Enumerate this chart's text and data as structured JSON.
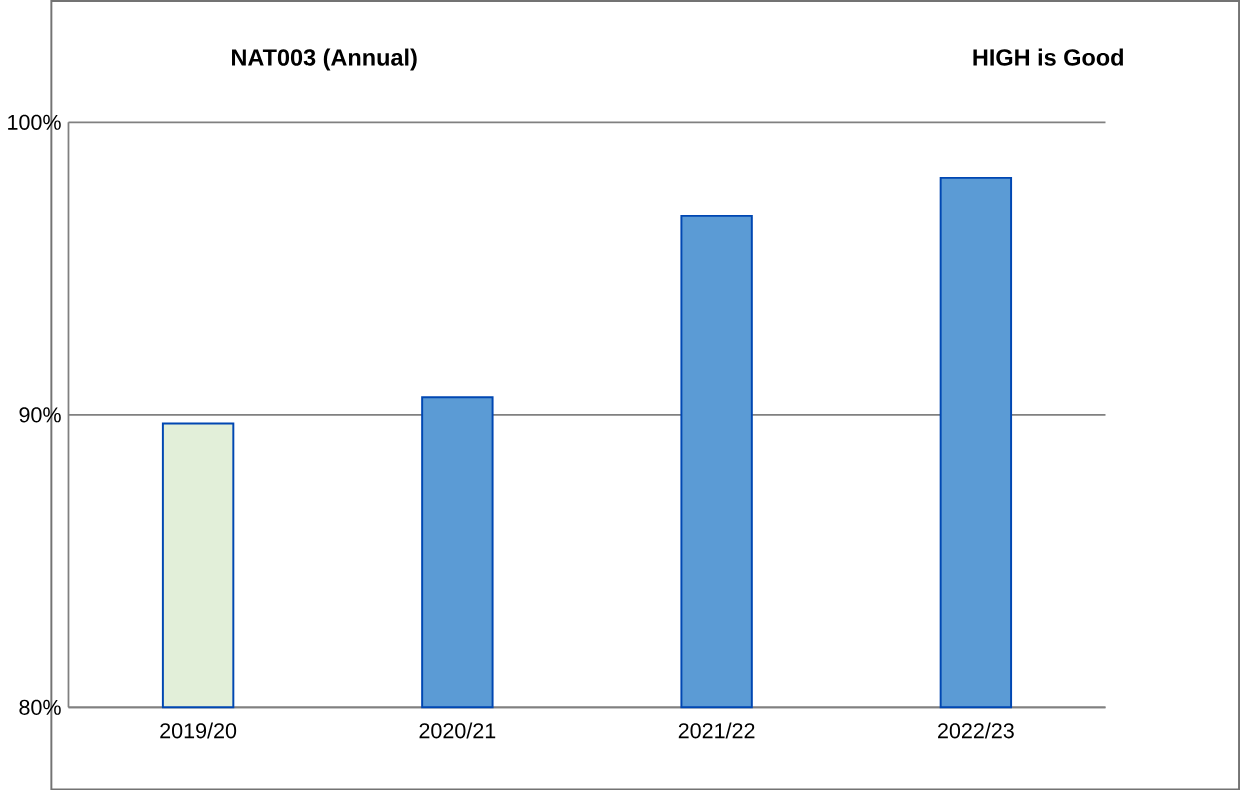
{
  "chart_data": {
    "type": "bar",
    "title": "NAT003 (Annual)",
    "annotations": [
      "HIGH is Good"
    ],
    "categories": [
      "2019/20",
      "2020/21",
      "2021/22",
      "2022/23"
    ],
    "values": [
      89.7,
      90.6,
      96.8,
      98.1
    ],
    "colors": [
      "#e2efd9",
      "#5b9bd5",
      "#5b9bd5",
      "#5b9bd5"
    ],
    "ylim": [
      80,
      100
    ],
    "yticks": [
      {
        "value": 80,
        "label": "80%"
      },
      {
        "value": 90,
        "label": "90%"
      },
      {
        "value": 100,
        "label": "100%"
      }
    ],
    "grid": "y"
  }
}
